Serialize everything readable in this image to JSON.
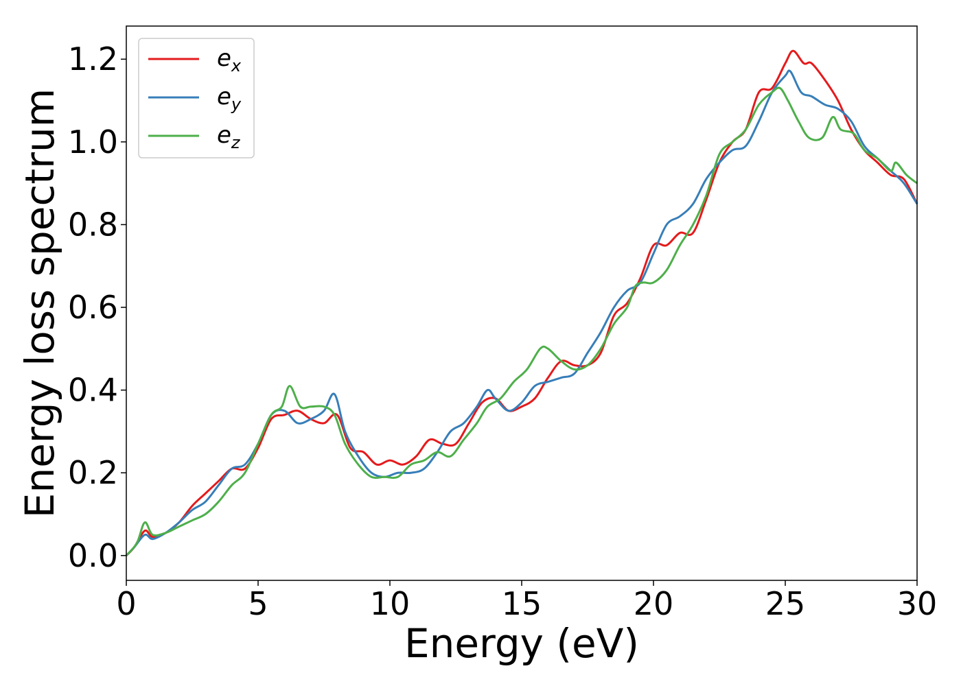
{
  "chart_data": {
    "type": "line",
    "title": "",
    "xlabel": "Energy (eV)",
    "ylabel": "Energy loss spectrum",
    "xlim": [
      0,
      30
    ],
    "ylim": [
      -0.06,
      1.28
    ],
    "xticks": [
      0,
      5,
      10,
      15,
      20,
      25,
      30
    ],
    "xtick_labels": [
      "0",
      "5",
      "10",
      "15",
      "20",
      "25",
      "30"
    ],
    "yticks": [
      0.0,
      0.2,
      0.4,
      0.6,
      0.8,
      1.0,
      1.2
    ],
    "ytick_labels": [
      "0.0",
      "0.2",
      "0.4",
      "0.6",
      "0.8",
      "1.0",
      "1.2"
    ],
    "grid": false,
    "legend_position": "top-left",
    "series": [
      {
        "name": "e_x",
        "label_base": "e",
        "label_sub": "x",
        "color": "#e41a1c",
        "x": [
          0,
          0.3,
          0.7,
          1,
          1.5,
          2,
          2.5,
          3,
          3.5,
          4,
          4.5,
          5,
          5.5,
          6,
          6.5,
          7,
          7.5,
          8,
          8.5,
          9,
          9.5,
          10,
          10.5,
          11,
          11.5,
          12,
          12.5,
          13,
          13.5,
          14,
          14.5,
          15,
          15.5,
          16,
          16.5,
          17,
          17.5,
          18,
          18.5,
          19,
          19.5,
          20,
          20.5,
          21,
          21.5,
          22,
          22.5,
          23,
          23.5,
          24,
          24.5,
          25,
          25.3,
          25.7,
          26,
          26.5,
          27,
          27.5,
          28,
          28.5,
          29,
          29.5,
          30
        ],
        "y": [
          0,
          0.02,
          0.06,
          0.045,
          0.055,
          0.08,
          0.12,
          0.15,
          0.18,
          0.21,
          0.21,
          0.26,
          0.33,
          0.34,
          0.35,
          0.33,
          0.32,
          0.34,
          0.26,
          0.25,
          0.22,
          0.23,
          0.22,
          0.24,
          0.28,
          0.27,
          0.27,
          0.32,
          0.37,
          0.38,
          0.35,
          0.36,
          0.38,
          0.43,
          0.47,
          0.46,
          0.46,
          0.49,
          0.58,
          0.61,
          0.67,
          0.75,
          0.75,
          0.78,
          0.78,
          0.86,
          0.95,
          1.0,
          1.03,
          1.12,
          1.13,
          1.19,
          1.22,
          1.19,
          1.19,
          1.15,
          1.1,
          1.03,
          0.98,
          0.95,
          0.92,
          0.91,
          0.85
        ]
      },
      {
        "name": "e_y",
        "label_base": "e",
        "label_sub": "y",
        "color": "#377eb8",
        "x": [
          0,
          0.3,
          0.7,
          1,
          1.5,
          2,
          2.5,
          3,
          3.5,
          4,
          4.5,
          5,
          5.5,
          6,
          6.5,
          7,
          7.5,
          7.9,
          8.3,
          8.8,
          9.3,
          9.8,
          10.3,
          10.8,
          11.3,
          11.8,
          12.3,
          12.8,
          13.3,
          13.7,
          14,
          14.5,
          15,
          15.5,
          16,
          16.5,
          17,
          17.5,
          18,
          18.5,
          19,
          19.5,
          20,
          20.5,
          21,
          21.5,
          22,
          22.5,
          23,
          23.5,
          24,
          24.5,
          25,
          25.2,
          25.6,
          26,
          26.5,
          27,
          27.5,
          28,
          28.5,
          29,
          29.5,
          30
        ],
        "y": [
          0,
          0.02,
          0.05,
          0.04,
          0.055,
          0.08,
          0.11,
          0.13,
          0.17,
          0.21,
          0.22,
          0.27,
          0.34,
          0.35,
          0.32,
          0.33,
          0.35,
          0.39,
          0.3,
          0.24,
          0.2,
          0.19,
          0.2,
          0.2,
          0.21,
          0.25,
          0.3,
          0.32,
          0.36,
          0.4,
          0.38,
          0.35,
          0.37,
          0.41,
          0.42,
          0.43,
          0.44,
          0.49,
          0.54,
          0.6,
          0.64,
          0.66,
          0.73,
          0.8,
          0.82,
          0.85,
          0.91,
          0.95,
          0.98,
          0.99,
          1.05,
          1.12,
          1.16,
          1.17,
          1.12,
          1.11,
          1.09,
          1.08,
          1.05,
          0.99,
          0.96,
          0.93,
          0.9,
          0.85
        ]
      },
      {
        "name": "e_z",
        "label_base": "e",
        "label_sub": "z",
        "color": "#4daf4a",
        "x": [
          0,
          0.4,
          0.7,
          1,
          1.5,
          2,
          2.5,
          3,
          3.5,
          4,
          4.5,
          5,
          5.5,
          5.9,
          6.2,
          6.6,
          7,
          7.5,
          7.9,
          8.3,
          8.8,
          9.3,
          9.8,
          10.3,
          10.8,
          11.3,
          11.8,
          12.3,
          12.8,
          13.3,
          13.7,
          14.2,
          14.7,
          15.2,
          15.7,
          16,
          16.5,
          17,
          17.5,
          18,
          18.5,
          19,
          19.3,
          19.6,
          20,
          20.5,
          21,
          21.5,
          22,
          22.5,
          23,
          23.5,
          24,
          24.5,
          24.8,
          25.1,
          25.5,
          25.9,
          26.4,
          26.8,
          27.1,
          27.6,
          28,
          28.5,
          29,
          29.2,
          29.6,
          30
        ],
        "y": [
          0,
          0.03,
          0.08,
          0.05,
          0.055,
          0.07,
          0.085,
          0.1,
          0.13,
          0.17,
          0.2,
          0.27,
          0.34,
          0.36,
          0.41,
          0.36,
          0.36,
          0.36,
          0.34,
          0.27,
          0.22,
          0.19,
          0.19,
          0.19,
          0.22,
          0.23,
          0.25,
          0.24,
          0.28,
          0.32,
          0.36,
          0.38,
          0.42,
          0.45,
          0.5,
          0.5,
          0.47,
          0.45,
          0.46,
          0.5,
          0.56,
          0.6,
          0.65,
          0.66,
          0.66,
          0.69,
          0.75,
          0.8,
          0.87,
          0.97,
          1.0,
          1.03,
          1.09,
          1.12,
          1.13,
          1.1,
          1.05,
          1.01,
          1.01,
          1.06,
          1.03,
          1.02,
          0.98,
          0.96,
          0.93,
          0.95,
          0.92,
          0.9
        ]
      }
    ]
  }
}
